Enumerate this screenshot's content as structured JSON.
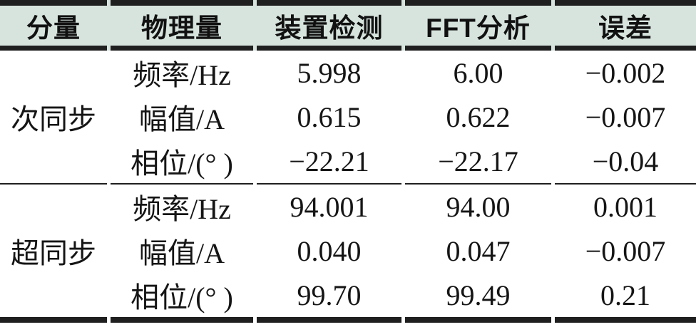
{
  "table": {
    "headers": [
      "分量",
      "物理量",
      "装置检测",
      "FFT分析",
      "误差"
    ],
    "groups": [
      {
        "component": "次同步",
        "rows": [
          {
            "quantity": "频率/Hz",
            "device": "5.998",
            "fft": "6.00",
            "error": "−0.002"
          },
          {
            "quantity": "幅值/A",
            "device": "0.615",
            "fft": "0.622",
            "error": "−0.007"
          },
          {
            "quantity": "相位/(° )",
            "device": "−22.21",
            "fft": "−22.17",
            "error": "−0.04"
          }
        ]
      },
      {
        "component": "超同步",
        "rows": [
          {
            "quantity": "频率/Hz",
            "device": "94.001",
            "fft": "94.00",
            "error": "0.001"
          },
          {
            "quantity": "幅值/A",
            "device": "0.040",
            "fft": "0.047",
            "error": "−0.007"
          },
          {
            "quantity": "相位/(° )",
            "device": "99.70",
            "fft": "99.49",
            "error": "0.21"
          }
        ]
      }
    ],
    "colors": {
      "header_background": "#d7e4de",
      "border": "#1f1f1f",
      "text": "#151515"
    }
  }
}
